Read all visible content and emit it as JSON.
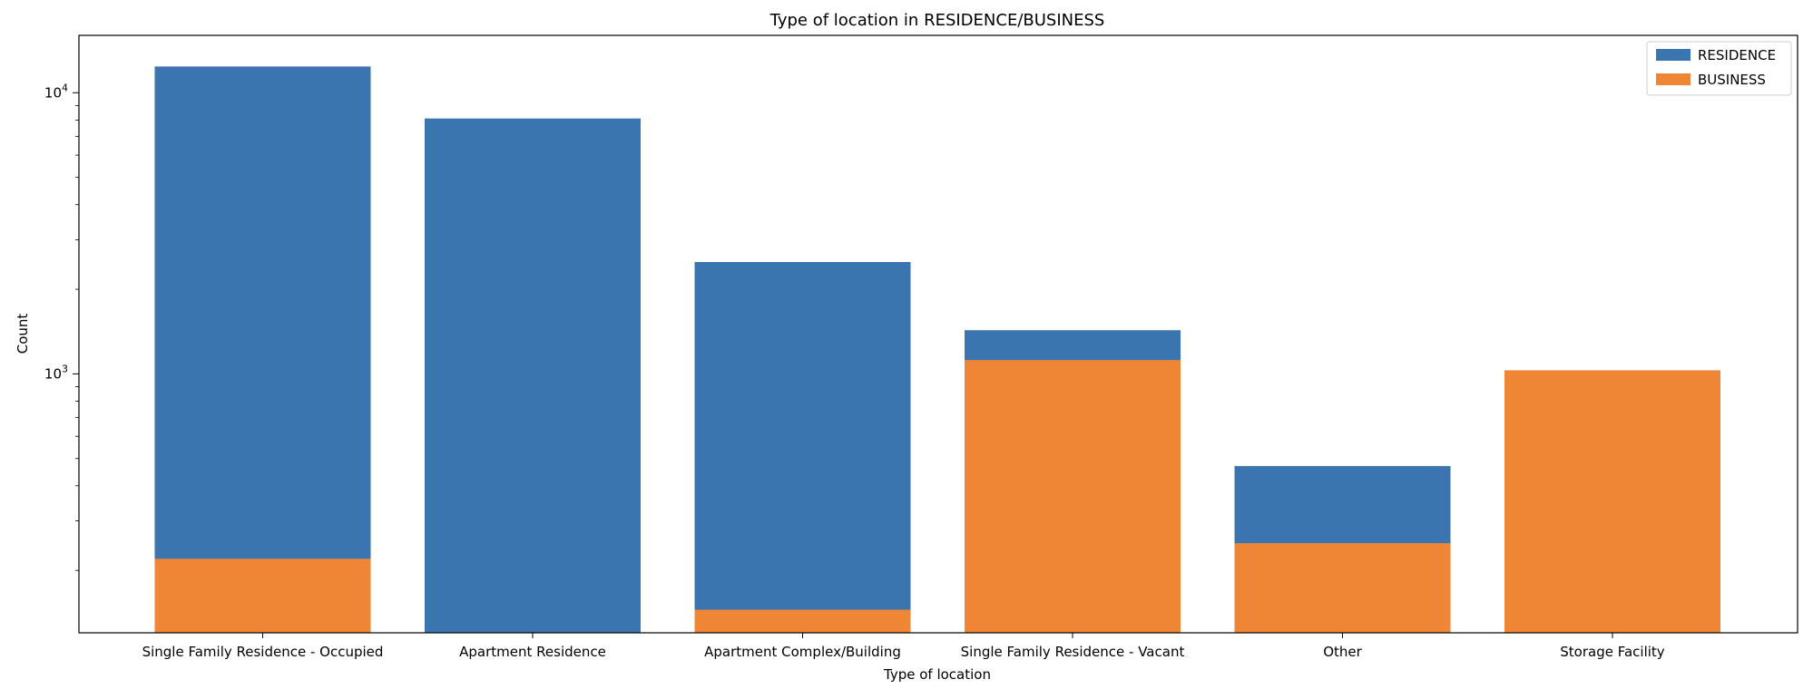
{
  "chart_data": {
    "type": "bar",
    "stacking": "overlay",
    "title": "Type of location in RESIDENCE/BUSINESS",
    "xlabel": "Type of location",
    "ylabel": "Count",
    "yscale": "log",
    "ylim": [
      120,
      16000
    ],
    "yticks": [
      {
        "value": 1000,
        "base": "10",
        "exp": "3"
      },
      {
        "value": 10000,
        "base": "10",
        "exp": "4"
      }
    ],
    "categories": [
      "Single Family Residence - Occupied",
      "Apartment Residence",
      "Apartment Complex/Building",
      "Single Family Residence - Vacant",
      "Other",
      "Storage Facility"
    ],
    "series": [
      {
        "name": "RESIDENCE",
        "color": "#3a75af",
        "values": [
          12400,
          8100,
          2500,
          1430,
          470,
          null
        ]
      },
      {
        "name": "BUSINESS",
        "color": "#ef8636",
        "values": [
          220,
          null,
          145,
          1120,
          250,
          1030
        ]
      }
    ],
    "grid": false,
    "legend_position": "top-right"
  }
}
